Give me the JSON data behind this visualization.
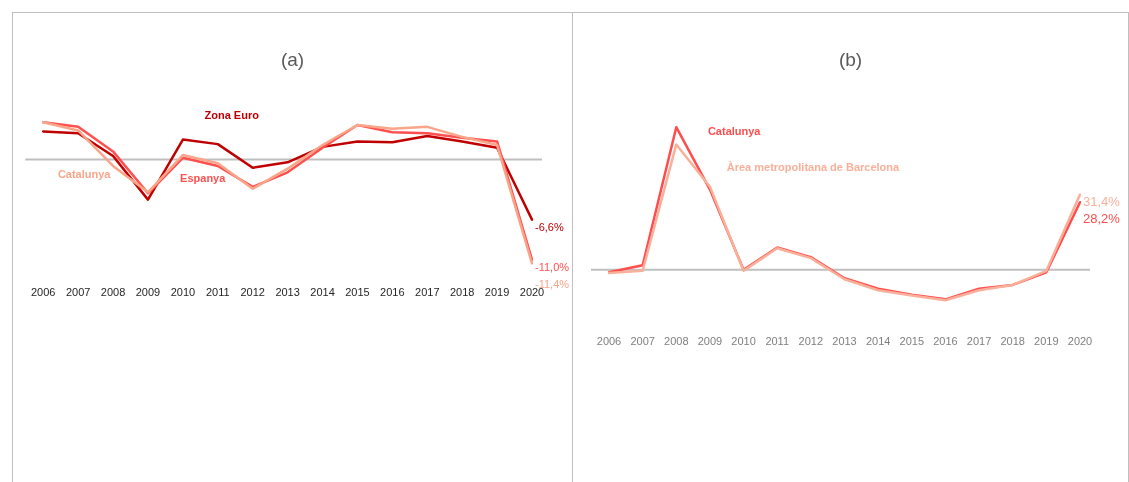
{
  "chart_data": [
    {
      "type": "line",
      "title": "(a)",
      "categories": [
        "2006",
        "2007",
        "2008",
        "2009",
        "2010",
        "2011",
        "2012",
        "2013",
        "2014",
        "2015",
        "2016",
        "2017",
        "2018",
        "2019",
        "2020"
      ],
      "tick_labels": "x",
      "marker": "none",
      "line_style": "solid",
      "ref_lines": [
        {
          "axis": "y",
          "value": 0,
          "color": "#bfbfbf"
        }
      ],
      "series": [
        {
          "name": "Catalunya",
          "color": "#f8a58a",
          "values": [
            4.1,
            3.2,
            -0.7,
            -3.6,
            0.5,
            -0.4,
            -3.2,
            -1.0,
            1.6,
            3.8,
            3.4,
            3.6,
            2.5,
            1.6,
            -11.4
          ],
          "value_labels": [
            null,
            null,
            null,
            null,
            null,
            null,
            null,
            null,
            null,
            null,
            null,
            null,
            null,
            null,
            "-11,4%"
          ]
        },
        {
          "name": "Espanya",
          "color": "#ff5050",
          "values": [
            4.1,
            3.6,
            0.9,
            -3.7,
            0.2,
            -0.7,
            -3.0,
            -1.4,
            1.3,
            3.8,
            3.0,
            2.9,
            2.4,
            2.0,
            -11.0
          ],
          "value_labels": [
            null,
            null,
            null,
            null,
            null,
            null,
            null,
            null,
            null,
            null,
            null,
            null,
            null,
            null,
            "-11,0%"
          ]
        },
        {
          "name": "Zona Euro",
          "color": "#c00000",
          "values": [
            3.1,
            2.9,
            0.4,
            -4.4,
            2.2,
            1.7,
            -0.9,
            -0.3,
            1.4,
            2.0,
            1.9,
            2.6,
            2.0,
            1.3,
            -6.6
          ],
          "value_labels": [
            null,
            null,
            null,
            null,
            null,
            null,
            null,
            null,
            null,
            null,
            null,
            null,
            null,
            null,
            "-6,6%"
          ]
        }
      ]
    },
    {
      "type": "line",
      "title": "(b)",
      "categories": [
        "2006",
        "2007",
        "2008",
        "2009",
        "2010",
        "2011",
        "2012",
        "2013",
        "2014",
        "2015",
        "2016",
        "2017",
        "2018",
        "2019",
        "2020"
      ],
      "tick_labels": "x",
      "marker": "none",
      "line_style": "solid",
      "ref_lines": [
        {
          "axis": "y",
          "value": 0,
          "color": "#bfbfbf"
        }
      ],
      "series": [
        {
          "name": "Àrea metropolitana de Barcelona",
          "color": "#f9b09a",
          "values": [
            -1.3,
            -0.4,
            52.3,
            34.7,
            -0.4,
            9.0,
            4.9,
            -3.9,
            -8.5,
            -10.7,
            -12.7,
            -8.5,
            -6.3,
            -0.4,
            31.4
          ],
          "value_labels": [
            null,
            null,
            null,
            null,
            null,
            null,
            null,
            null,
            null,
            null,
            null,
            null,
            null,
            null,
            "31,4%"
          ]
        },
        {
          "name": "Catalunya",
          "color": "#ff4d4d",
          "values": [
            -1.0,
            1.9,
            59.5,
            33.5,
            0,
            9.3,
            5.3,
            -3.5,
            -7.9,
            -10.4,
            -12.3,
            -7.9,
            -6.3,
            -1.0,
            28.2
          ],
          "value_labels": [
            null,
            null,
            null,
            null,
            null,
            null,
            null,
            null,
            null,
            null,
            null,
            null,
            null,
            null,
            "28,2%"
          ]
        }
      ]
    }
  ]
}
